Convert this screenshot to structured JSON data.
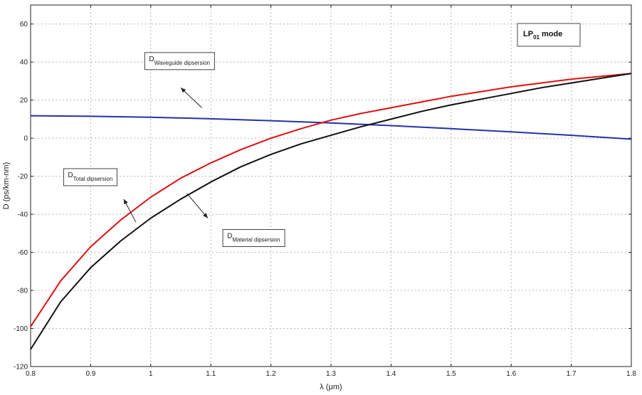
{
  "chart_data": {
    "type": "line",
    "title": "",
    "xlabel": "λ (μm)",
    "ylabel": "D (ps/km-nm)",
    "xlim": [
      0.8,
      1.8
    ],
    "ylim": [
      -120,
      70
    ],
    "x_ticks": [
      0.8,
      0.9,
      1.0,
      1.1,
      1.2,
      1.3,
      1.4,
      1.5,
      1.6,
      1.7,
      1.8
    ],
    "x_tick_labels": [
      "0.8",
      "0.9",
      "1",
      "1.1",
      "1.2",
      "1.3",
      "1.4",
      "1.5",
      "1.6",
      "1.7",
      "1.8"
    ],
    "y_ticks": [
      -120,
      -100,
      -80,
      -60,
      -40,
      -20,
      0,
      20,
      40,
      60
    ],
    "y_tick_labels": [
      "-120",
      "-100",
      "-80",
      "-60",
      "-40",
      "-20",
      "0",
      "20",
      "40",
      "60"
    ],
    "grid": true,
    "mode_label": {
      "main": "LP",
      "sub": "01",
      "suffix": " mode"
    },
    "series": [
      {
        "key": "waveguide",
        "color": "#2233aa",
        "x": [
          0.8,
          0.9,
          1.0,
          1.1,
          1.2,
          1.3,
          1.4,
          1.5,
          1.6,
          1.7,
          1.8
        ],
        "y": [
          11.8,
          11.5,
          11.0,
          10.2,
          9.2,
          8.0,
          6.6,
          5.0,
          3.3,
          1.5,
          -0.5
        ]
      },
      {
        "key": "total",
        "color": "#dd1111",
        "x": [
          0.8,
          0.85,
          0.9,
          0.95,
          1.0,
          1.05,
          1.1,
          1.15,
          1.2,
          1.25,
          1.3,
          1.35,
          1.4,
          1.45,
          1.5,
          1.55,
          1.6,
          1.65,
          1.7,
          1.75,
          1.8
        ],
        "y": [
          -99,
          -75,
          -57,
          -43,
          -31,
          -21,
          -13,
          -6,
          0,
          5,
          9.5,
          13,
          16,
          19,
          22,
          24.5,
          27,
          29,
          31,
          32.5,
          34
        ]
      },
      {
        "key": "material",
        "color": "#111111",
        "x": [
          0.8,
          0.85,
          0.9,
          0.95,
          1.0,
          1.05,
          1.1,
          1.15,
          1.2,
          1.25,
          1.3,
          1.35,
          1.4,
          1.45,
          1.5,
          1.55,
          1.6,
          1.65,
          1.7,
          1.75,
          1.8
        ],
        "y": [
          -111,
          -86,
          -68,
          -54,
          -42,
          -32,
          -23,
          -15,
          -8.5,
          -3,
          1.5,
          6,
          10,
          14,
          17.5,
          20.5,
          23.5,
          26.5,
          29,
          31.5,
          34
        ]
      }
    ],
    "annotations": [
      {
        "key": "waveguide",
        "text_main": "D",
        "text_sub": "Waveguide dipsersion",
        "box_x": 0.99,
        "box_y": 45,
        "arrow_from": [
          1.085,
          16
        ],
        "arrow_to": [
          1.05,
          26.5
        ]
      },
      {
        "key": "total",
        "text_main": "D",
        "text_sub": "Total dipsersion",
        "box_x": 0.855,
        "box_y": -16,
        "arrow_from": [
          0.975,
          -44
        ],
        "arrow_to": [
          0.955,
          -32
        ]
      },
      {
        "key": "material",
        "text_main": "D",
        "text_sub": "Material dipsersion",
        "box_x": 1.12,
        "box_y": -48,
        "arrow_from": [
          1.06,
          -29
        ],
        "arrow_to": [
          1.095,
          -42
        ]
      }
    ]
  }
}
